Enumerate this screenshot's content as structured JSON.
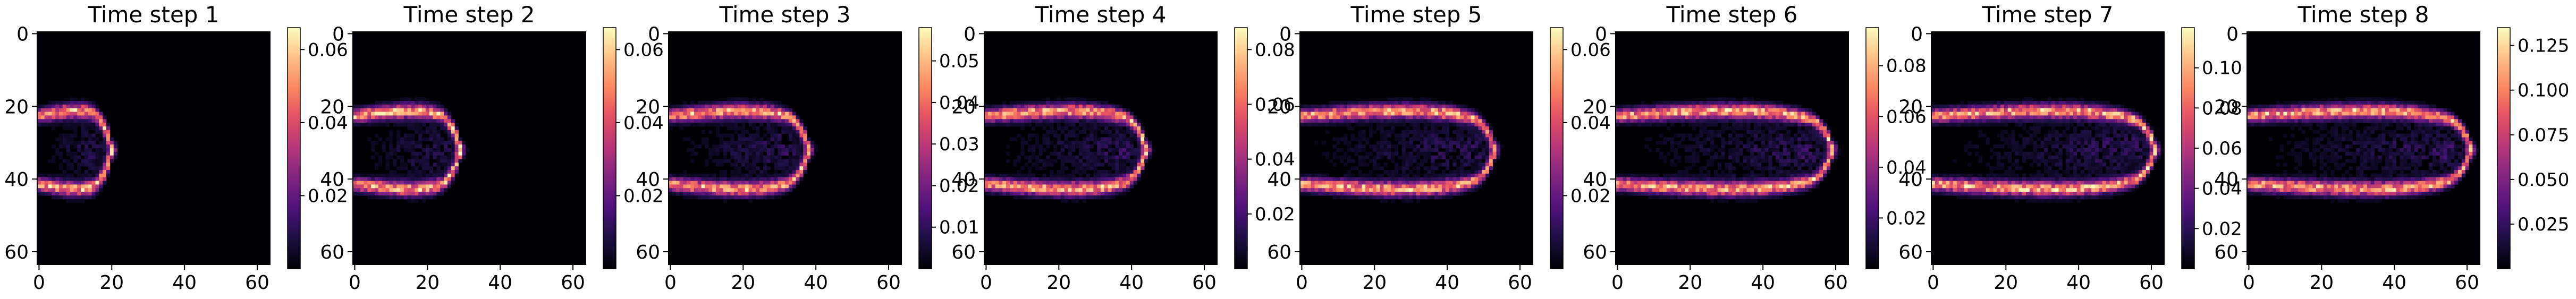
{
  "chart_data": [
    {
      "type": "heatmap",
      "title": "Time step 1",
      "xticks": [
        0,
        20,
        40,
        60
      ],
      "yticks": [
        0,
        20,
        40,
        60
      ],
      "grid_size": [
        64,
        64
      ],
      "xlim": [
        0,
        63
      ],
      "ylim": [
        63,
        0
      ],
      "colormap": "magma",
      "colorbar_range": [
        0,
        0.066
      ],
      "colorbar_ticks": [
        "0.02",
        "0.04",
        "0.06"
      ],
      "colorbar_tick_values": [
        0.02,
        0.04,
        0.06
      ],
      "front_x": 20
    },
    {
      "type": "heatmap",
      "title": "Time step 2",
      "xticks": [
        0,
        20,
        40,
        60
      ],
      "yticks": [
        0,
        20,
        40,
        60
      ],
      "grid_size": [
        64,
        64
      ],
      "xlim": [
        0,
        63
      ],
      "ylim": [
        63,
        0
      ],
      "colormap": "magma",
      "colorbar_range": [
        0,
        0.066
      ],
      "colorbar_ticks": [
        "0.02",
        "0.04",
        "0.06"
      ],
      "colorbar_tick_values": [
        0.02,
        0.04,
        0.06
      ],
      "front_x": 29
    },
    {
      "type": "heatmap",
      "title": "Time step 3",
      "xticks": [
        0,
        20,
        40,
        60
      ],
      "yticks": [
        0,
        20,
        40,
        60
      ],
      "grid_size": [
        64,
        64
      ],
      "xlim": [
        0,
        63
      ],
      "ylim": [
        63,
        0
      ],
      "colormap": "magma",
      "colorbar_range": [
        0,
        0.058
      ],
      "colorbar_ticks": [
        "0.01",
        "0.02",
        "0.03",
        "0.04",
        "0.05"
      ],
      "colorbar_tick_values": [
        0.01,
        0.02,
        0.03,
        0.04,
        0.05
      ],
      "front_x": 38
    },
    {
      "type": "heatmap",
      "title": "Time step 4",
      "xticks": [
        0,
        20,
        40,
        60
      ],
      "yticks": [
        0,
        20,
        40,
        60
      ],
      "grid_size": [
        64,
        64
      ],
      "xlim": [
        0,
        63
      ],
      "ylim": [
        63,
        0
      ],
      "colormap": "magma",
      "colorbar_range": [
        0,
        0.088
      ],
      "colorbar_ticks": [
        "0.02",
        "0.04",
        "0.06",
        "0.08"
      ],
      "colorbar_tick_values": [
        0.02,
        0.04,
        0.06,
        0.08
      ],
      "front_x": 44
    },
    {
      "type": "heatmap",
      "title": "Time step 5",
      "xticks": [
        0,
        20,
        40,
        60
      ],
      "yticks": [
        0,
        20,
        40,
        60
      ],
      "grid_size": [
        64,
        64
      ],
      "xlim": [
        0,
        63
      ],
      "ylim": [
        63,
        0
      ],
      "colormap": "magma",
      "colorbar_range": [
        0,
        0.066
      ],
      "colorbar_ticks": [
        "0.02",
        "0.04",
        "0.06"
      ],
      "colorbar_tick_values": [
        0.02,
        0.04,
        0.06
      ],
      "front_x": 53
    },
    {
      "type": "heatmap",
      "title": "Time step 6",
      "xticks": [
        0,
        20,
        40,
        60
      ],
      "yticks": [
        0,
        20,
        40,
        60
      ],
      "grid_size": [
        64,
        64
      ],
      "xlim": [
        0,
        63
      ],
      "ylim": [
        63,
        0
      ],
      "colormap": "magma",
      "colorbar_range": [
        0,
        0.095
      ],
      "colorbar_ticks": [
        "0.02",
        "0.04",
        "0.06",
        "0.08"
      ],
      "colorbar_tick_values": [
        0.02,
        0.04,
        0.06,
        0.08
      ],
      "front_x": 59
    },
    {
      "type": "heatmap",
      "title": "Time step 7",
      "xticks": [
        0,
        20,
        40,
        60
      ],
      "yticks": [
        0,
        20,
        40,
        60
      ],
      "grid_size": [
        64,
        64
      ],
      "xlim": [
        0,
        63
      ],
      "ylim": [
        63,
        0
      ],
      "colormap": "magma",
      "colorbar_range": [
        0,
        0.12
      ],
      "colorbar_ticks": [
        "0.02",
        "0.04",
        "0.06",
        "0.08",
        "0.10"
      ],
      "colorbar_tick_values": [
        0.02,
        0.04,
        0.06,
        0.08,
        0.1
      ],
      "front_x": 61
    },
    {
      "type": "heatmap",
      "title": "Time step 8",
      "xticks": [
        0,
        20,
        40,
        60
      ],
      "yticks": [
        0,
        20,
        40,
        60
      ],
      "grid_size": [
        64,
        64
      ],
      "xlim": [
        0,
        63
      ],
      "ylim": [
        63,
        0
      ],
      "colormap": "magma",
      "colorbar_range": [
        0,
        0.135
      ],
      "colorbar_ticks": [
        "0.025",
        "0.050",
        "0.075",
        "0.100",
        "0.125"
      ],
      "colorbar_tick_values": [
        0.025,
        0.05,
        0.075,
        0.1,
        0.125
      ],
      "front_x": 61
    }
  ],
  "colors": {
    "background": "#000004",
    "text": "#000000",
    "axis": "#000000"
  }
}
